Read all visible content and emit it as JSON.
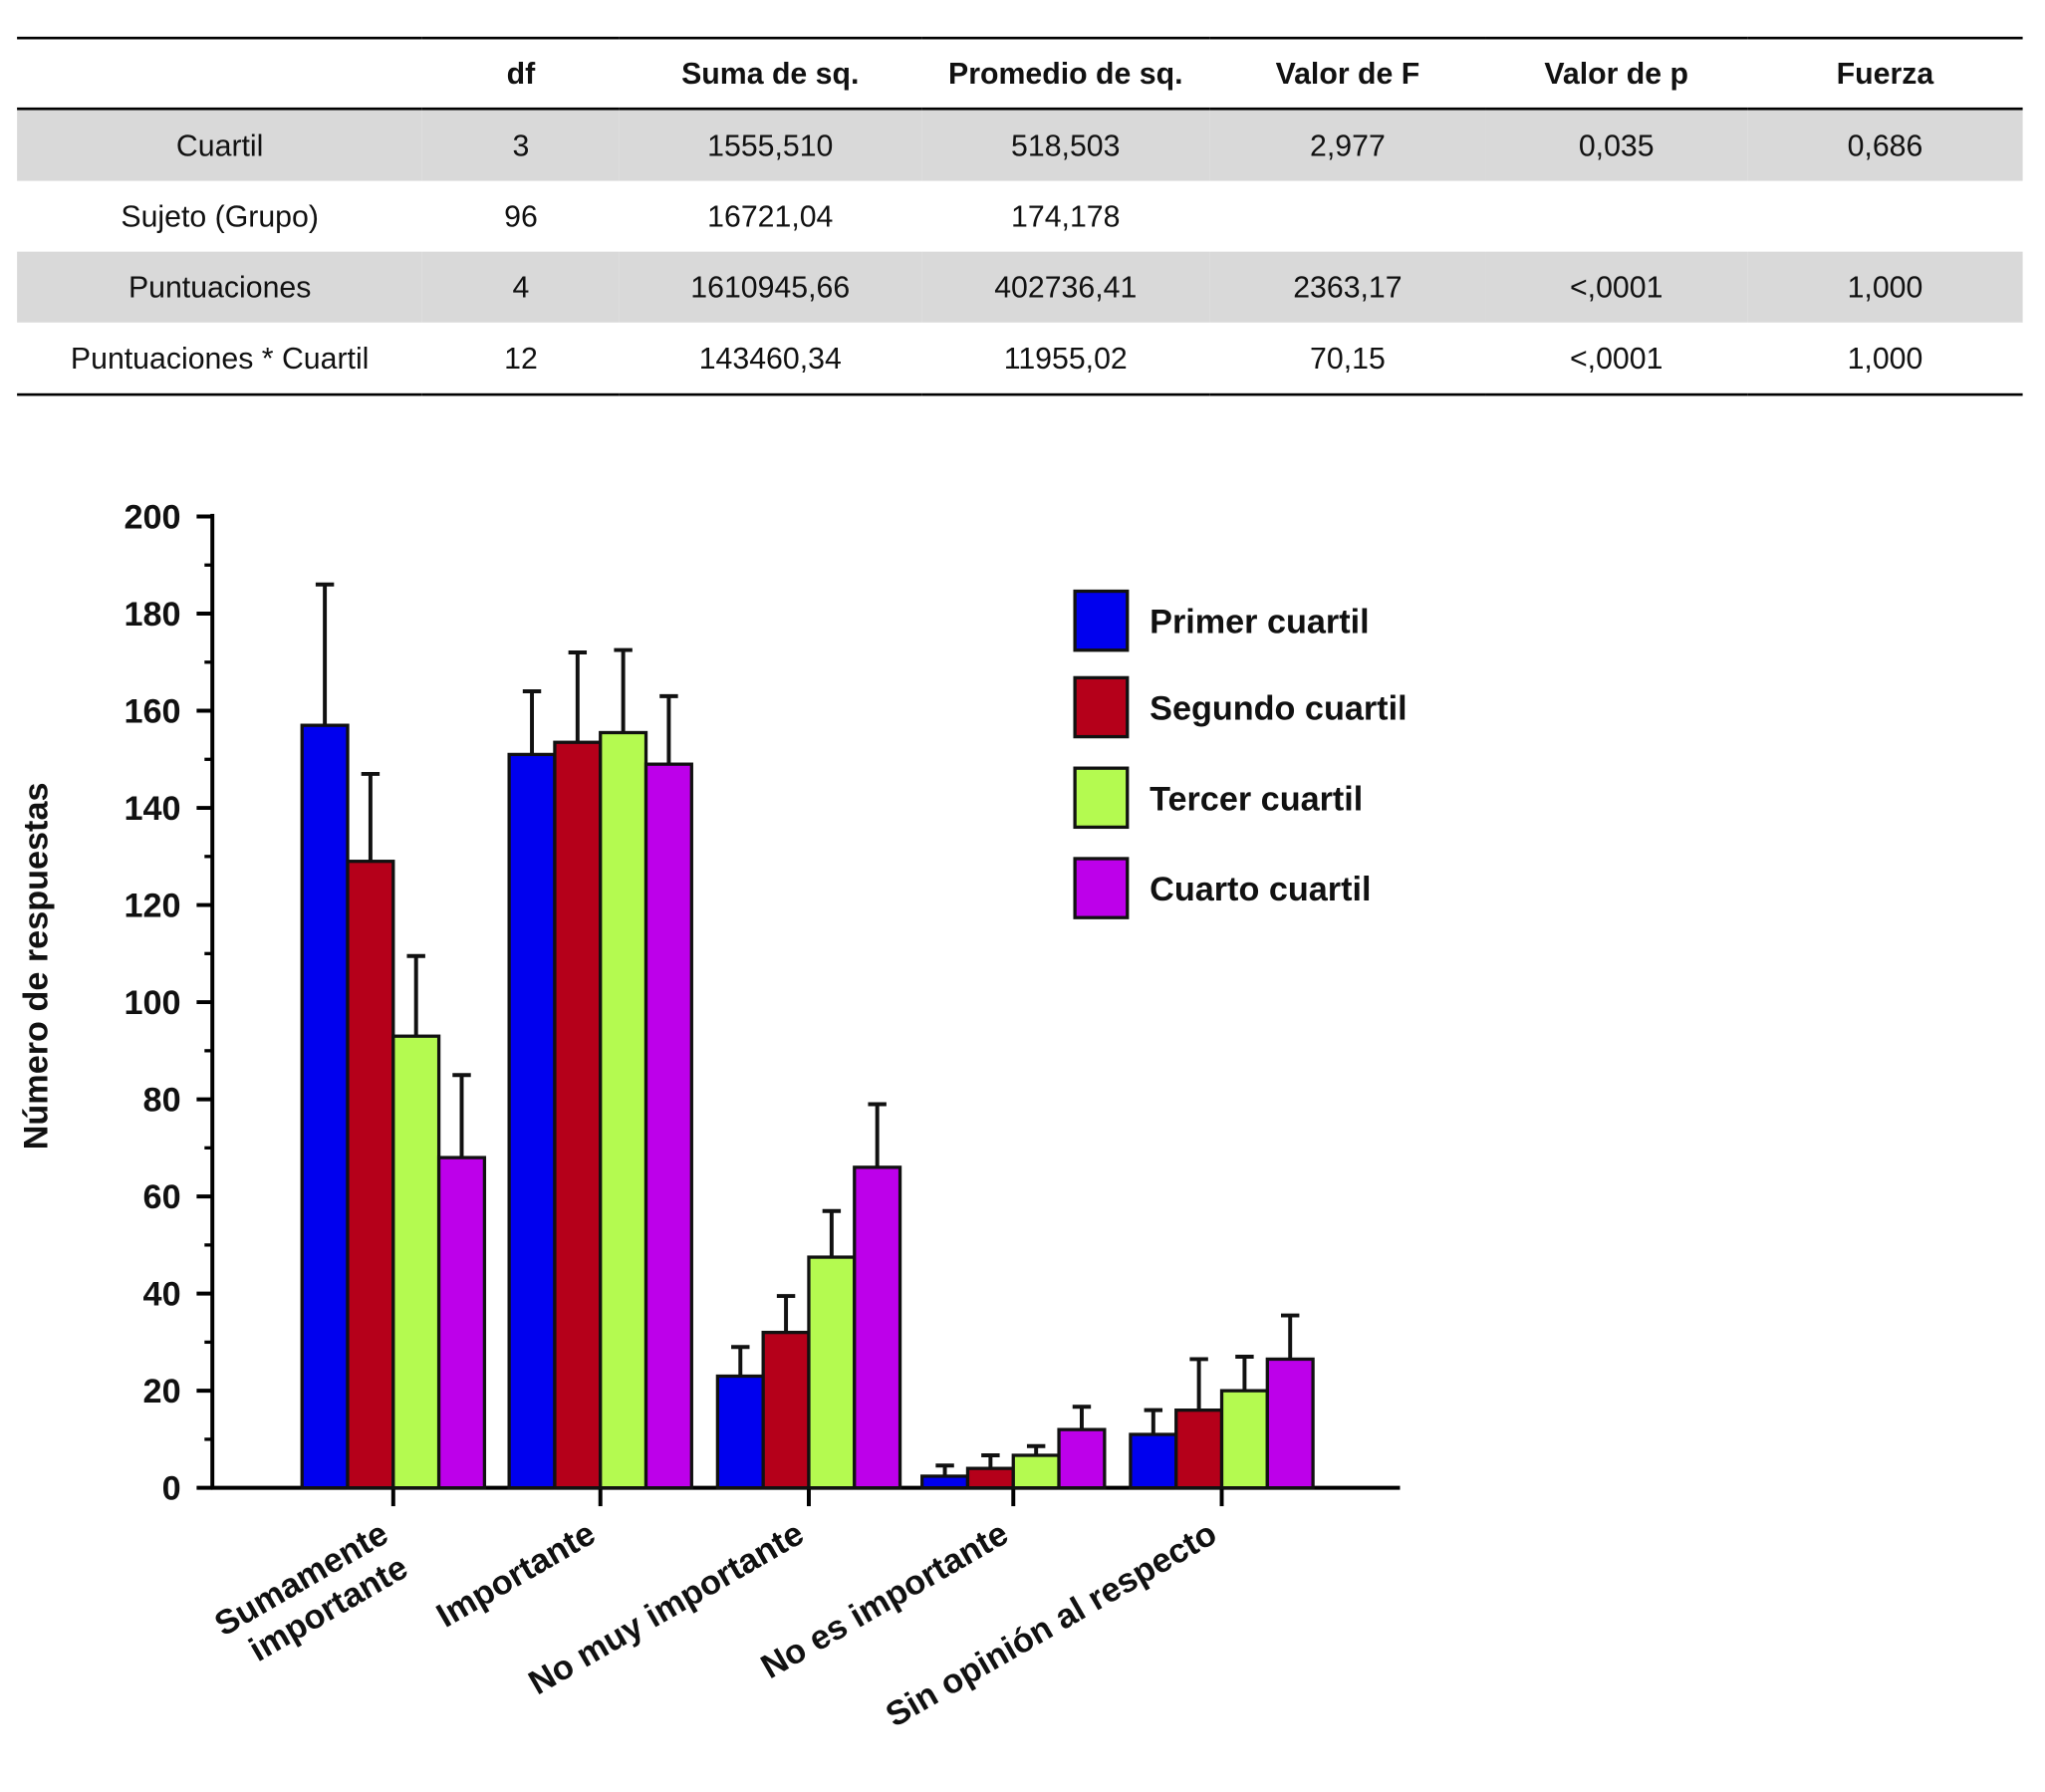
{
  "table": {
    "headers": [
      "",
      "df",
      "Suma de sq.",
      "Promedio de sq.",
      "Valor de F",
      "Valor de p",
      "Fuerza"
    ],
    "rows": [
      [
        "Cuartil",
        "3",
        "1555,510",
        "518,503",
        "2,977",
        "0,035",
        "0,686"
      ],
      [
        "Sujeto (Grupo)",
        "96",
        "16721,04",
        "174,178",
        "",
        "",
        ""
      ],
      [
        "Puntuaciones",
        "4",
        "1610945,66",
        "402736,41",
        "2363,17",
        "<,0001",
        "1,000"
      ],
      [
        "Puntuaciones * Cuartil",
        "12",
        "143460,34",
        "11955,02",
        "70,15",
        "<,0001",
        "1,000"
      ]
    ]
  },
  "chart_data": {
    "type": "bar",
    "title": "",
    "xlabel": "",
    "ylabel": "Número de respuestas",
    "ylim": [
      0,
      200
    ],
    "yticks": [
      0,
      20,
      40,
      60,
      80,
      100,
      120,
      140,
      160,
      180,
      200
    ],
    "grid": false,
    "legend_position": "top-right",
    "categories": [
      "Sumamente importante",
      "Importante",
      "No muy importante",
      "No es importante",
      "Sin opinión al respecto"
    ],
    "series": [
      {
        "name": "Primer cuartil",
        "color": "#0000ee",
        "values": [
          157,
          151,
          23,
          2.4,
          11
        ],
        "error_upper": [
          186,
          164,
          29,
          4.6,
          16
        ]
      },
      {
        "name": "Segundo cuartil",
        "color": "#b5001a",
        "values": [
          129,
          153.5,
          32,
          4,
          16
        ],
        "error_upper": [
          147,
          172,
          39.5,
          6.7,
          26.5
        ]
      },
      {
        "name": "Tercer cuartil",
        "color": "#b4fa50",
        "values": [
          93,
          155.5,
          47.5,
          6.7,
          20
        ],
        "error_upper": [
          109.5,
          172.5,
          57,
          8.6,
          27
        ]
      },
      {
        "name": "Cuarto cuartil",
        "color": "#bd00ea",
        "values": [
          68,
          149,
          66,
          12,
          26.5
        ],
        "error_upper": [
          85,
          163,
          79,
          16.7,
          35.5
        ]
      }
    ]
  }
}
